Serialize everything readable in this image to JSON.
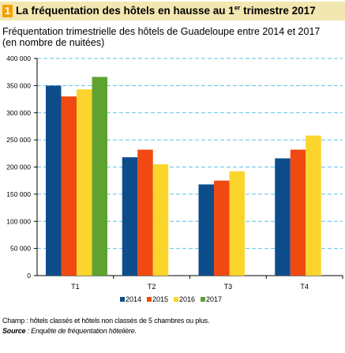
{
  "header": {
    "badge": "1",
    "title_main": "La fréquentation des hôtels en hausse au 1",
    "title_sup": "er",
    "title_end": " trimestre 2017"
  },
  "chart_data": {
    "type": "bar",
    "title": "Fréquentation trimestrielle des hôtels de Guadeloupe entre 2014 et 2017",
    "subtitle": "(en nombre de nuitées)",
    "categories": [
      "T1",
      "T2",
      "T3",
      "T4"
    ],
    "series": [
      {
        "name": "2014",
        "color": "#0d4d8c",
        "values": [
          350000,
          218000,
          168000,
          216000
        ]
      },
      {
        "name": "2015",
        "color": "#f04a12",
        "values": [
          330000,
          232000,
          175000,
          232000
        ]
      },
      {
        "name": "2016",
        "color": "#fbd52b",
        "values": [
          343000,
          205000,
          192000,
          258000
        ]
      },
      {
        "name": "2017",
        "color": "#5fa232",
        "values": [
          366000,
          null,
          null,
          null
        ]
      }
    ],
    "ylim": [
      0,
      400000
    ],
    "yticks": [
      0,
      50000,
      100000,
      150000,
      200000,
      250000,
      300000,
      350000,
      400000
    ],
    "ytick_labels": [
      "0",
      "50 000",
      "100 000",
      "150 000",
      "200 000",
      "250 000",
      "300 000",
      "350 000",
      "400 000"
    ],
    "grid": "horizontal dashed",
    "legend_position": "bottom"
  },
  "footnotes": {
    "champ": "Champ : hôtels classés et hôtels non classés de 5 chambres ou plus.",
    "source_label": "Source",
    "source_text": " : Enquête de fréquentation hôtelière."
  }
}
